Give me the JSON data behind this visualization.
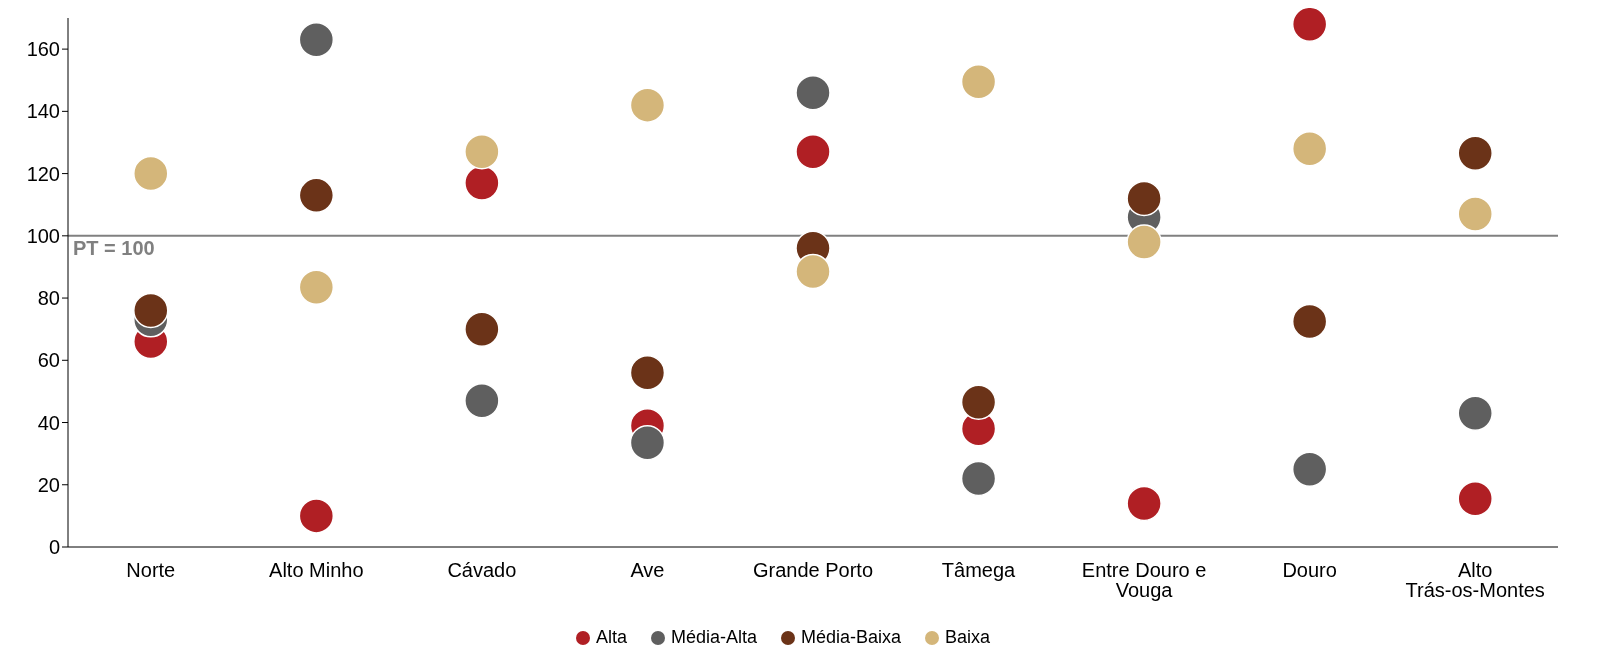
{
  "chart_data": {
    "type": "scatter",
    "categories": [
      "Norte",
      "Alto Minho",
      "Cávado",
      "Ave",
      "Grande Porto",
      "Tâmega",
      "Entre Douro e Vouga",
      "Douro",
      "Alto Trás-os-Montes"
    ],
    "series": [
      {
        "name": "Alta",
        "color": "#b01f24",
        "values": [
          66,
          10,
          117,
          39,
          127,
          38,
          14,
          168,
          15.5
        ]
      },
      {
        "name": "Média-Alta",
        "color": "#5f5f5f",
        "values": [
          73,
          163,
          47,
          33.5,
          146,
          22,
          106,
          25,
          43
        ]
      },
      {
        "name": "Média-Baixa",
        "color": "#6b3318",
        "values": [
          76,
          113,
          70,
          56,
          96,
          46.5,
          112,
          72.5,
          126.5
        ]
      },
      {
        "name": "Baixa",
        "color": "#d4b67a",
        "values": [
          120,
          83.5,
          127,
          142,
          88.5,
          149.5,
          98,
          128,
          107
        ]
      }
    ],
    "ylim": [
      0,
      170
    ],
    "yticks": [
      0,
      20,
      40,
      60,
      80,
      100,
      120,
      140,
      160
    ],
    "ref_lines": [
      {
        "axis": "y",
        "value": 100,
        "label": "PT = 100",
        "color": "#808080"
      }
    ],
    "grid": false,
    "legend": "bottom",
    "marker": "circle"
  }
}
